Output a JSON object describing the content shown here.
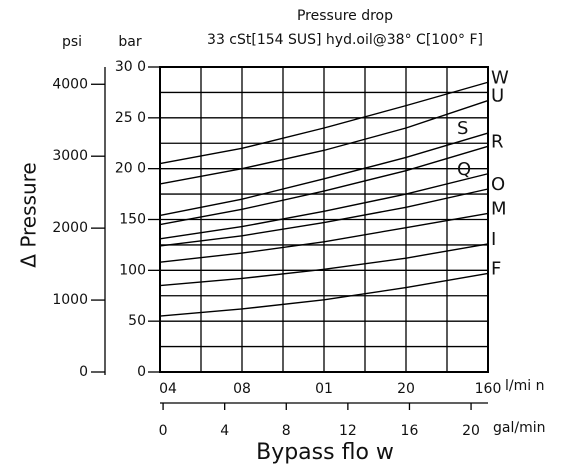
{
  "chart_data": {
    "type": "line",
    "title": "Pressure drop",
    "subtitle": "33 cSt[154 SUS] hyd.oil@38° C[100° F]",
    "ylabel": "Δ Pressure",
    "y_unit": "bar",
    "y2_unit": "psi",
    "x_unit": "l/mi n",
    "x2_unit": "gal/min",
    "xlabel": "Bypass flo w",
    "x": [
      0,
      40,
      80,
      120,
      160
    ],
    "xlim": [
      0,
      160
    ],
    "xticks": [
      {
        "value": 0,
        "label": "04"
      },
      {
        "value": 40,
        "label": "08"
      },
      {
        "value": 80,
        "label": "01"
      },
      {
        "value": 120,
        "label": "20"
      },
      160
    ],
    "x2lim": [
      -0.2,
      21.1
    ],
    "x2ticks": [
      0,
      4,
      8,
      12,
      16,
      20
    ],
    "ylim": [
      0,
      300
    ],
    "yticks": [
      0,
      50,
      100,
      150,
      {
        "value": 200,
        "label": "20 0"
      },
      {
        "value": 250,
        "label": "25 0"
      },
      {
        "value": 300,
        "label": "30 0"
      }
    ],
    "y2lim": [
      0,
      4240
    ],
    "y2ticks": [
      0,
      1000,
      2000,
      3000,
      4000
    ],
    "grid": true,
    "series": [
      {
        "name": "W",
        "color": "#000000",
        "values": [
          205,
          220,
          240,
          262,
          285
        ]
      },
      {
        "name": "U",
        "color": "#000000",
        "values": [
          185,
          200,
          218,
          240,
          267
        ]
      },
      {
        "name": "S",
        "color": "#000000",
        "values": [
          154,
          170,
          190,
          211,
          235
        ]
      },
      {
        "name": "R",
        "color": "#000000",
        "values": [
          145,
          160,
          178,
          198,
          222
        ]
      },
      {
        "name": "Q",
        "color": "#000000",
        "values": [
          131,
          143,
          158,
          175,
          195
        ]
      },
      {
        "name": "O",
        "color": "#000000",
        "values": [
          124,
          134,
          147,
          162,
          180
        ]
      },
      {
        "name": "M",
        "color": "#000000",
        "values": [
          108,
          117,
          128,
          142,
          156
        ]
      },
      {
        "name": "I",
        "color": "#000000",
        "values": [
          85,
          92,
          101,
          112,
          126
        ]
      },
      {
        "name": "F",
        "color": "#000000",
        "values": [
          55,
          62,
          71,
          83,
          97
        ]
      }
    ]
  }
}
